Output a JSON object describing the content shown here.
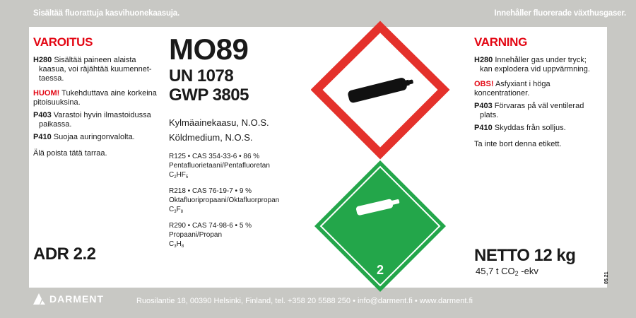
{
  "header": {
    "left": "Sisältää fluorattuja kasvihuonekaasuja.",
    "right": "Innehåller fluorerade växthusgaser."
  },
  "fi": {
    "title": "VAROITUS",
    "h280_code": "H280",
    "h280_text": "Sisältää paineen alaista",
    "h280_cont": "kaasua, voi räjähtää kuumennet-",
    "h280_cont2": "taessa.",
    "huom_code": "HUOM!",
    "huom_text": "Tukehduttava aine korkeina pitoisuuksina.",
    "p403_code": "P403",
    "p403_text": "Varastoi hyvin ilmastoidussa",
    "p403_cont": "paikassa.",
    "p410_code": "P410",
    "p410_text": "Suojaa auringonvalolta.",
    "note": "Älä poista tätä tarraa."
  },
  "sv": {
    "title": "VARNING",
    "h280_code": "H280",
    "h280_text": "Innehåller gas under tryck;",
    "h280_cont": "kan explodera vid uppvärmning.",
    "obs_code": "OBS!",
    "obs_text": "Asfyxiant i höga koncentrationer.",
    "p403_code": "P403",
    "p403_text": "Förvaras på väl ventilerad",
    "p403_cont": "plats.",
    "p410_code": "P410",
    "p410_text": "Skyddas från solljus.",
    "note": "Ta inte bort denna etikett."
  },
  "product": {
    "name": "MO89",
    "un": "UN 1078",
    "gwp": "GWP 3805",
    "desc_fi": "Kylmäainekaasu, N.O.S.",
    "desc_sv": "Köldmedium, N.O.S."
  },
  "components": [
    {
      "line": "R125 • CAS 354-33-6 • 86 %",
      "name": "Pentafluorietaani/Pentafluoretan",
      "f": [
        "C",
        "2",
        "HF",
        "5"
      ]
    },
    {
      "line": "R218 • CAS 76-19-7 • 9 %",
      "name": "Oktafluoripropaani/Oktafluorpropan",
      "f": [
        "C",
        "3",
        "F",
        "8"
      ]
    },
    {
      "line": "R290 • CAS 74-98-6 • 5 %",
      "name": "Propaani/Propan",
      "f": [
        "C",
        "3",
        "H",
        "8"
      ]
    }
  ],
  "adr": "ADR 2.2",
  "net": {
    "weight": "NETTO 12 kg",
    "co2_a": "45,7 t CO",
    "co2_sub": "2",
    "co2_b": " -ekv"
  },
  "version": "05.21",
  "pictograms": {
    "ghs": "gas-cylinder-icon",
    "adr_class": "2",
    "ghs_color": "#e4312b",
    "adr_color": "#23a64a"
  },
  "footer": {
    "brand": "DARMENT",
    "address": "Ruosilantie 18, 00390 Helsinki, Finland, tel. +358 20 5588 250 • info@darment.fi • www.darment.fi"
  }
}
